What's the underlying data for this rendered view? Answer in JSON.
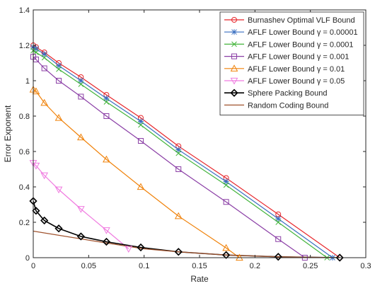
{
  "chart_data": {
    "type": "line",
    "title": "",
    "xlabel": "Rate",
    "ylabel": "Error Exponent",
    "xlim": [
      0,
      0.3
    ],
    "ylim": [
      0,
      1.4
    ],
    "xticks": [
      0,
      0.05,
      0.1,
      0.15,
      0.2,
      0.25,
      0.3
    ],
    "xtick_labels": [
      "0",
      "0.05",
      "0.1",
      "0.15",
      "0.2",
      "0.25",
      "0.3"
    ],
    "yticks": [
      0,
      0.2,
      0.4,
      0.6,
      0.8,
      1,
      1.2,
      1.4
    ],
    "ytick_labels": [
      "0",
      "0.2",
      "0.4",
      "0.6",
      "0.8",
      "1",
      "1.2",
      "1.4"
    ],
    "grid": false,
    "legend_position": "top-right",
    "series": [
      {
        "name": "Burnashev Optimal VLF Bound",
        "color": "#e8262b",
        "marker": "circle",
        "x": [
          0,
          0.0025,
          0.01,
          0.023,
          0.043,
          0.066,
          0.097,
          0.131,
          0.174,
          0.221,
          0.2765
        ],
        "y": [
          1.2,
          1.19,
          1.16,
          1.1,
          1.02,
          0.92,
          0.79,
          0.63,
          0.45,
          0.245,
          0
        ]
      },
      {
        "name": "AFLF Lower Bound γ = 0.00001",
        "color": "#3a6fc0",
        "marker": "asterisk",
        "x": [
          0,
          0.0025,
          0.01,
          0.023,
          0.043,
          0.066,
          0.097,
          0.131,
          0.174,
          0.221,
          0.27
        ],
        "y": [
          1.19,
          1.18,
          1.15,
          1.085,
          1.0,
          0.9,
          0.77,
          0.61,
          0.43,
          0.22,
          0
        ]
      },
      {
        "name": "AFLF Lower Bound γ = 0.0001",
        "color": "#44b53c",
        "marker": "x",
        "x": [
          0,
          0.0025,
          0.01,
          0.023,
          0.043,
          0.066,
          0.097,
          0.131,
          0.174,
          0.221,
          0.265
        ],
        "y": [
          1.17,
          1.16,
          1.13,
          1.065,
          0.98,
          0.88,
          0.75,
          0.59,
          0.41,
          0.2,
          0
        ]
      },
      {
        "name": "AFLF Lower Bound γ = 0.001",
        "color": "#8b3fa6",
        "marker": "square",
        "x": [
          0,
          0.0025,
          0.01,
          0.023,
          0.043,
          0.066,
          0.097,
          0.131,
          0.174,
          0.221,
          0.245
        ],
        "y": [
          1.135,
          1.12,
          1.07,
          1.0,
          0.91,
          0.8,
          0.66,
          0.5,
          0.315,
          0.105,
          0
        ]
      },
      {
        "name": "AFLF Lower Bound γ = 0.01",
        "color": "#f0820a",
        "marker": "triangle-up",
        "x": [
          0,
          0.0025,
          0.01,
          0.023,
          0.043,
          0.066,
          0.097,
          0.131,
          0.174,
          0.186
        ],
        "y": [
          0.95,
          0.94,
          0.875,
          0.79,
          0.68,
          0.555,
          0.4,
          0.235,
          0.055,
          0
        ]
      },
      {
        "name": "AFLF Lower Bound γ = 0.05",
        "color": "#f07be0",
        "marker": "triangle-down",
        "x": [
          0,
          0.0025,
          0.01,
          0.023,
          0.043,
          0.066,
          0.086
        ],
        "y": [
          0.535,
          0.52,
          0.465,
          0.385,
          0.275,
          0.155,
          0.05
        ]
      },
      {
        "name": "Sphere Packing Bound",
        "color": "#000000",
        "marker": "diamond",
        "x": [
          0,
          0.0025,
          0.01,
          0.023,
          0.043,
          0.066,
          0.097,
          0.131,
          0.174,
          0.221,
          0.2765
        ],
        "y": [
          0.32,
          0.265,
          0.21,
          0.165,
          0.12,
          0.09,
          0.058,
          0.033,
          0.015,
          0.005,
          0
        ]
      },
      {
        "name": "Random Coding Bound",
        "color": "#a0522d",
        "marker": "none",
        "x": [
          0,
          0.066,
          0.1,
          0.131,
          0.174,
          0.221,
          0.2765
        ],
        "y": [
          0.15,
          0.083,
          0.05,
          0.033,
          0.015,
          0.005,
          0
        ]
      }
    ]
  }
}
